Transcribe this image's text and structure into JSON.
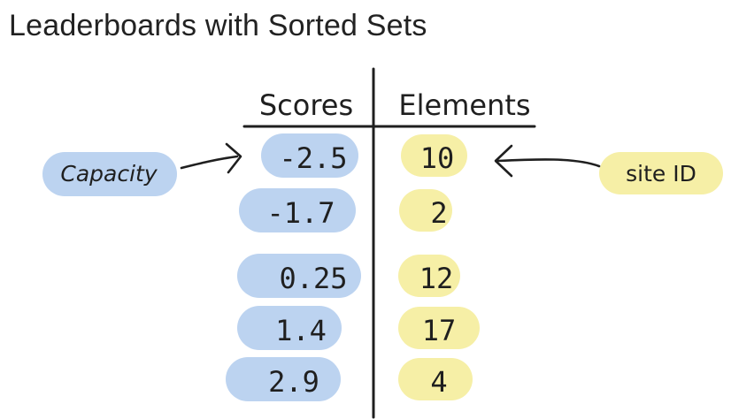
{
  "title": "Leaderboards with Sorted Sets",
  "table": {
    "headers": {
      "scores": "Scores",
      "elements": "Elements"
    },
    "rows": [
      {
        "score": "-2.5",
        "element": "10"
      },
      {
        "score": "-1.7",
        "element": "2"
      },
      {
        "score": "0.25",
        "element": "12"
      },
      {
        "score": "1.4",
        "element": "17"
      },
      {
        "score": "2.9",
        "element": "4"
      }
    ]
  },
  "annotations": {
    "left": "Capacity",
    "right": "site ID"
  },
  "colors": {
    "score_highlight": "#bcd3f0",
    "element_highlight": "#f6efa6",
    "ink": "#1f1f1f",
    "title_text": "#222222"
  }
}
